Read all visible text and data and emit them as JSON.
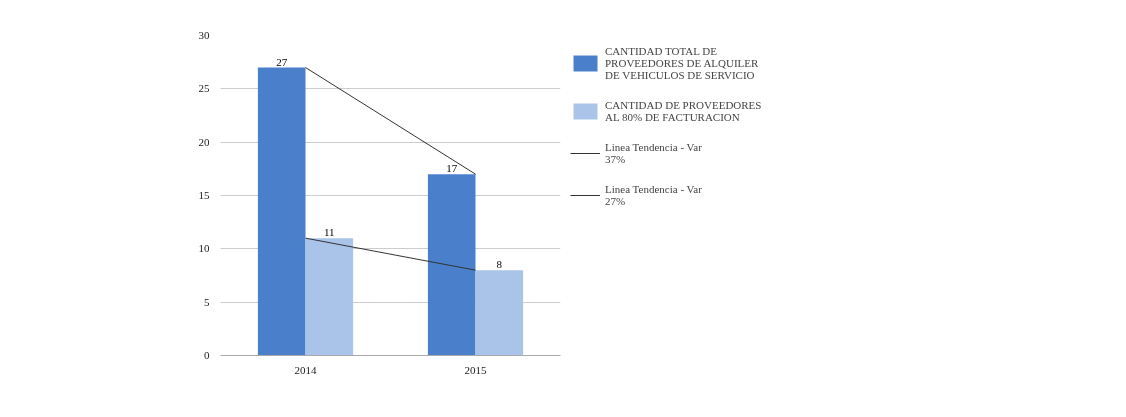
{
  "chart_data": {
    "type": "bar",
    "categories": [
      "2014",
      "2015"
    ],
    "series": [
      {
        "name": "CANTIDAD TOTAL DE PROVEEDORES DE ALQUILER DE VEHICULOS DE SERVICIO",
        "color": "#4a7fcc",
        "values": [
          27,
          17
        ],
        "value_labels": [
          "27",
          "17"
        ]
      },
      {
        "name": "CANTIDAD DE PROVEEDORES AL 80% DE FACTURACION",
        "color": "#a9c4e8",
        "values": [
          11,
          8
        ],
        "value_labels": [
          "11",
          "8"
        ]
      },
      {
        "name": "Linea Tendencia - Var 37%",
        "type": "line",
        "color": "#333333",
        "values": [
          27,
          17
        ]
      },
      {
        "name": "Linea Tendencia - Var 27%",
        "type": "line",
        "color": "#333333",
        "values": [
          11,
          8
        ]
      }
    ],
    "ylim": [
      0,
      30
    ],
    "yticks": [
      0,
      5,
      10,
      15,
      20,
      25,
      30
    ],
    "grid": "y",
    "legend": "right",
    "line_style": "solid"
  }
}
